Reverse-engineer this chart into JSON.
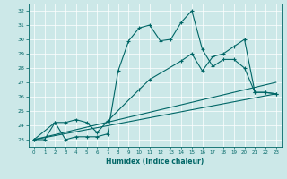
{
  "xlabel": "Humidex (Indice chaleur)",
  "bg_color": "#cce8e8",
  "line_color": "#006666",
  "xlim": [
    -0.5,
    23.5
  ],
  "ylim": [
    22.5,
    32.5
  ],
  "yticks": [
    23,
    24,
    25,
    26,
    27,
    28,
    29,
    30,
    31,
    32
  ],
  "xticks": [
    0,
    1,
    2,
    3,
    4,
    5,
    6,
    7,
    8,
    9,
    10,
    11,
    12,
    13,
    14,
    15,
    16,
    17,
    18,
    19,
    20,
    21,
    22,
    23
  ],
  "line1_x": [
    0,
    1,
    2,
    3,
    4,
    5,
    6,
    7,
    8,
    9,
    10,
    11,
    12,
    13,
    14,
    15,
    16,
    17,
    18,
    19,
    20,
    21,
    22,
    23
  ],
  "line1_y": [
    23.0,
    23.0,
    24.2,
    23.0,
    23.2,
    23.2,
    23.2,
    23.4,
    27.8,
    29.9,
    30.8,
    31.0,
    29.9,
    30.0,
    31.2,
    32.0,
    29.3,
    28.1,
    28.6,
    28.6,
    28.0,
    26.3,
    26.3,
    26.2
  ],
  "line2_x": [
    0,
    2,
    3,
    4,
    5,
    6,
    7,
    10,
    11,
    14,
    15,
    16,
    17,
    18,
    19,
    20,
    21,
    22,
    23
  ],
  "line2_y": [
    23.0,
    24.2,
    24.2,
    24.4,
    24.2,
    23.5,
    24.3,
    26.5,
    27.2,
    28.5,
    29.0,
    27.8,
    28.8,
    29.0,
    29.5,
    30.0,
    26.3,
    26.3,
    26.2
  ],
  "line3_x": [
    0,
    23
  ],
  "line3_y": [
    23.0,
    27.0
  ],
  "line4_x": [
    0,
    23
  ],
  "line4_y": [
    23.0,
    26.2
  ]
}
